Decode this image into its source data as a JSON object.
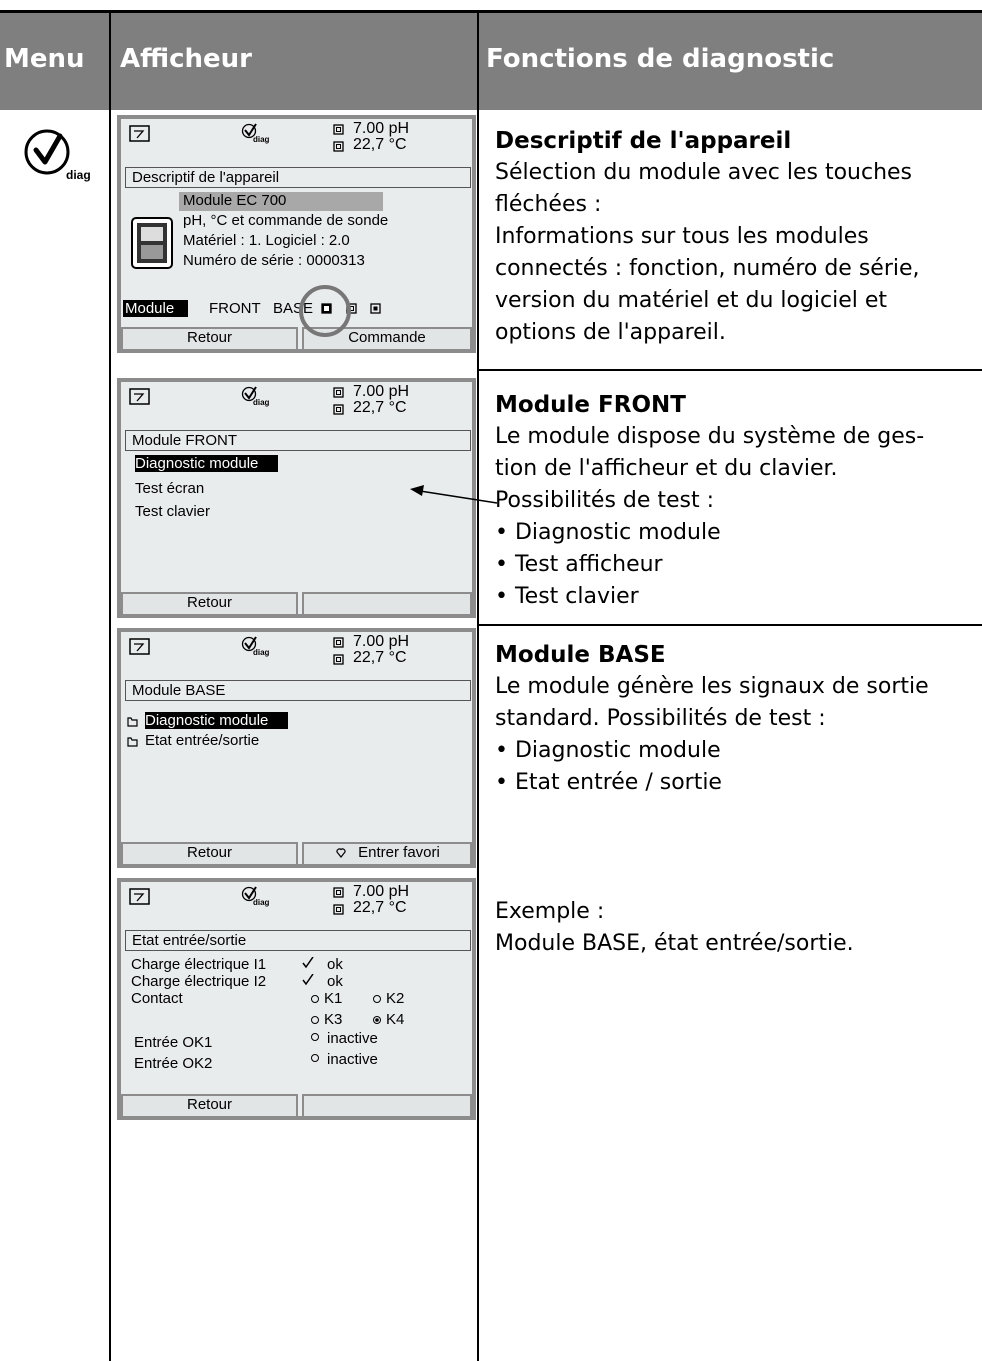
{
  "header": {
    "menu": "Menu",
    "display": "Afficheur",
    "functions": "Fonctions de diagnostic"
  },
  "menu_icon": "diag",
  "screens": [
    {
      "diag_icon": "diag",
      "ph": "7.00 pH",
      "temp": "22,7 °C",
      "title": "Descriptif de l'appareil",
      "selected": "Module EC 700",
      "lines": [
        "pH, °C et commande de sonde",
        "Matériel : 1. Logiciel : 2.0",
        "Numéro de série : 0000313"
      ],
      "modules": [
        "Module",
        "FRONT",
        "BASE"
      ],
      "softkeys": [
        "Retour",
        "Commande"
      ]
    },
    {
      "diag_icon": "diag",
      "ph": "7.00 pH",
      "temp": "22,7 °C",
      "title": "Module FRONT",
      "items": [
        "Diagnostic module",
        "Test écran",
        "Test clavier"
      ],
      "softkeys": [
        "Retour"
      ]
    },
    {
      "diag_icon": "diag",
      "ph": "7.00 pH",
      "temp": "22,7 °C",
      "title": "Module BASE",
      "items": [
        "Diagnostic module",
        "Etat entrée/sortie"
      ],
      "softkeys": [
        "Retour",
        "Entrer favori"
      ]
    },
    {
      "diag_icon": "diag",
      "ph": "7.00 pH",
      "temp": "22,7 °C",
      "title": "Etat entrée/sortie",
      "status": [
        {
          "label": "Charge électrique I1",
          "value": "ok"
        },
        {
          "label": "Charge électrique I2",
          "value": "ok"
        }
      ],
      "contact": {
        "label": "Contact",
        "outputs": [
          "K1",
          "K2",
          "K3",
          "K4"
        ]
      },
      "inputs": [
        {
          "label": "Entrée OK1",
          "value": "inactive"
        },
        {
          "label": "Entrée OK2",
          "value": "inactive"
        }
      ],
      "softkeys": [
        "Retour"
      ]
    }
  ],
  "descriptions": [
    {
      "title": "Descriptif de l'appareil",
      "lines": [
        "Sélection du module avec les touches",
        "fléchées :",
        "Informations sur tous les modules",
        "connectés : fonction, numéro de série,",
        "version du matériel et du logiciel et",
        "options de l'appareil."
      ]
    },
    {
      "title": "Module FRONT",
      "lines": [
        "Le module dispose du système de ges-",
        "tion de l'afficheur et du clavier.",
        "Possibilités de test :",
        "• Diagnostic module",
        "• Test afficheur",
        "• Test clavier"
      ]
    },
    {
      "title": "Module BASE",
      "lines": [
        "Le module génère les signaux de sortie",
        "standard. Possibilités de test :",
        "• Diagnostic module",
        "• Etat entrée / sortie"
      ]
    },
    {
      "lines": [
        "Exemple :",
        "Module BASE, état entrée/sortie."
      ]
    }
  ]
}
